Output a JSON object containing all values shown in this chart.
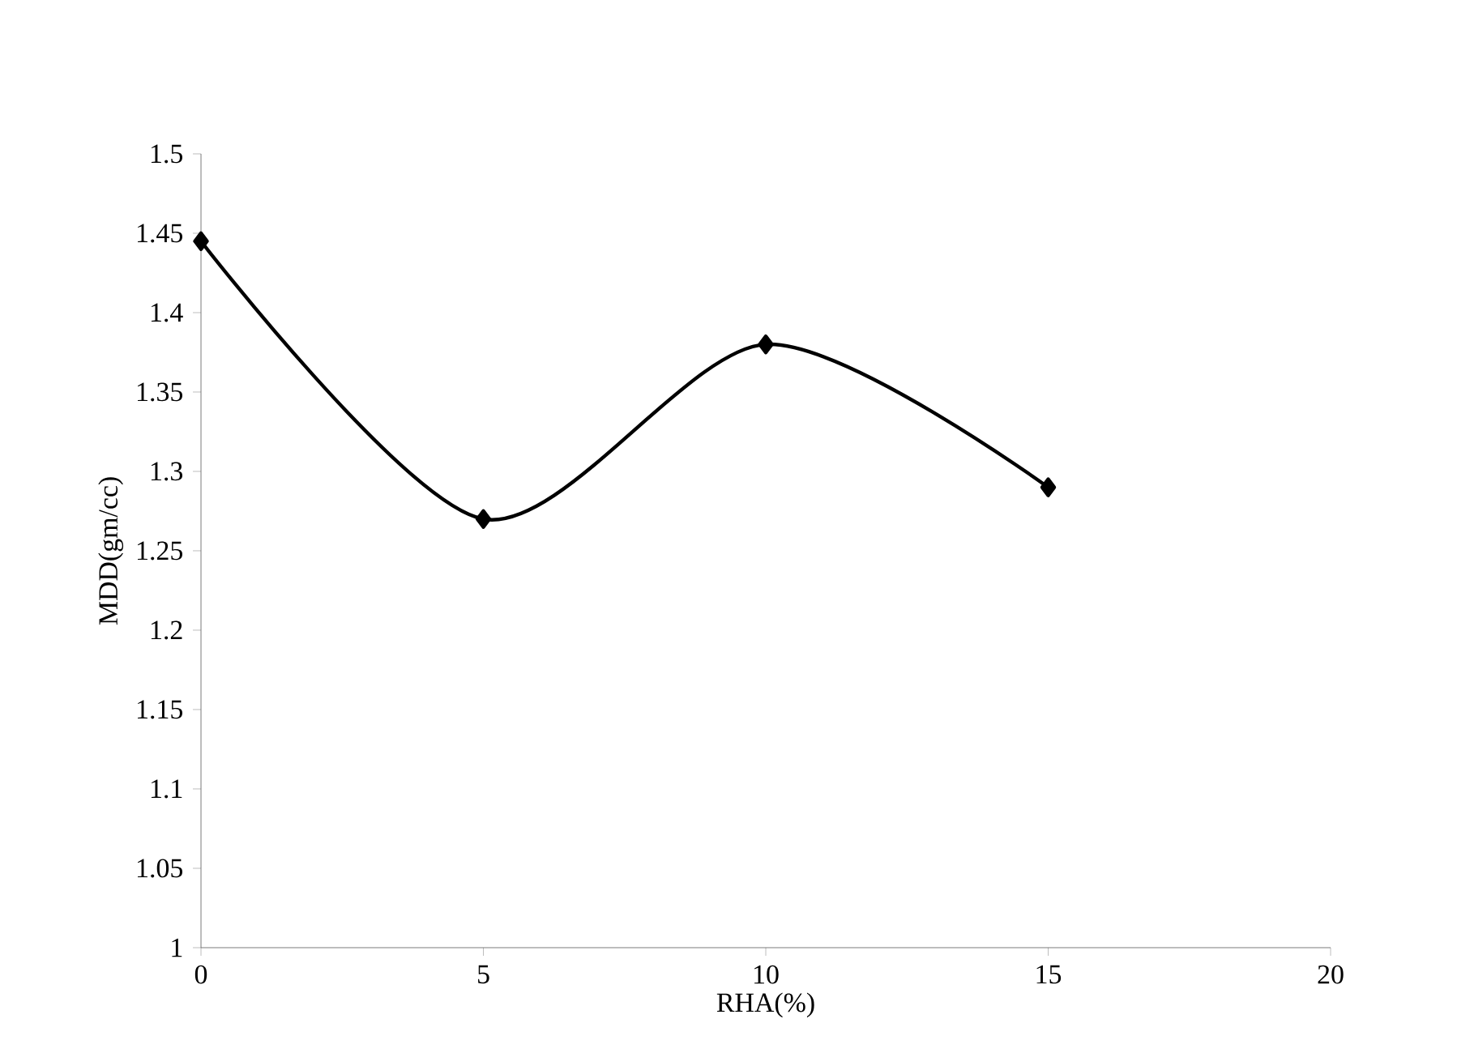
{
  "chart_data": {
    "type": "line",
    "xlabel": "RHA(%)",
    "ylabel": "MDD(gm/cc)",
    "x": [
      0,
      5,
      10,
      15
    ],
    "values": [
      1.445,
      1.27,
      1.38,
      1.29
    ],
    "color": "#000000",
    "marker": "diamond",
    "line_style": "solid",
    "xlim": [
      0,
      20
    ],
    "xticks": [
      0,
      5,
      10,
      15,
      20
    ],
    "ylim": [
      1,
      1.5
    ],
    "yticks": [
      1,
      1.05,
      1.1,
      1.15,
      1.2,
      1.25,
      1.3,
      1.35,
      1.4,
      1.45,
      1.5
    ]
  }
}
